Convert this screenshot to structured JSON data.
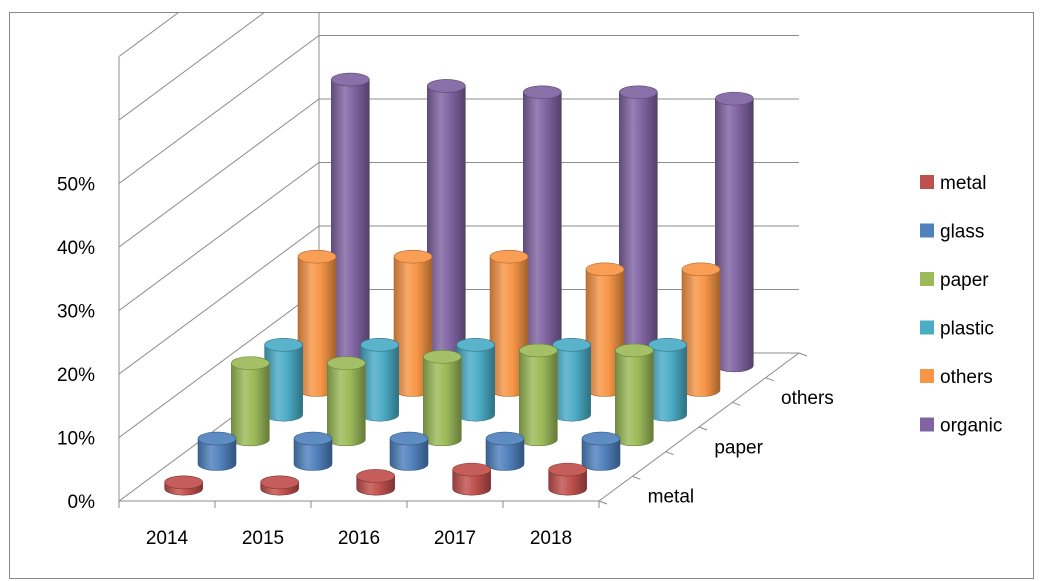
{
  "chart_data": {
    "type": "bar",
    "subtype": "3d-column",
    "title": "",
    "xlabel": "",
    "ylabel": "",
    "categories": [
      "2014",
      "2015",
      "2016",
      "2017",
      "2018"
    ],
    "series": [
      {
        "name": "metal",
        "color": "#c0504d",
        "values": [
          1,
          1,
          2,
          3,
          3
        ]
      },
      {
        "name": "glass",
        "color": "#4f81bd",
        "values": [
          4,
          4,
          4,
          4,
          4
        ]
      },
      {
        "name": "paper",
        "color": "#9bbb59",
        "values": [
          12,
          12,
          13,
          14,
          14
        ]
      },
      {
        "name": "plastic",
        "color": "#4bacc6",
        "values": [
          11,
          11,
          11,
          11,
          11
        ]
      },
      {
        "name": "others",
        "color": "#f79646",
        "values": [
          21,
          21,
          21,
          19,
          19
        ]
      },
      {
        "name": "organic",
        "color": "#8064a2",
        "values": [
          45,
          44,
          43,
          43,
          42
        ]
      }
    ],
    "y_ticks": [
      "0%",
      "10%",
      "20%",
      "30%",
      "40%",
      "50%"
    ],
    "ylim": [
      0,
      50
    ],
    "depth_axis_labels": [
      "metal",
      "paper",
      "others"
    ],
    "legend_position": "right",
    "grid": true
  }
}
